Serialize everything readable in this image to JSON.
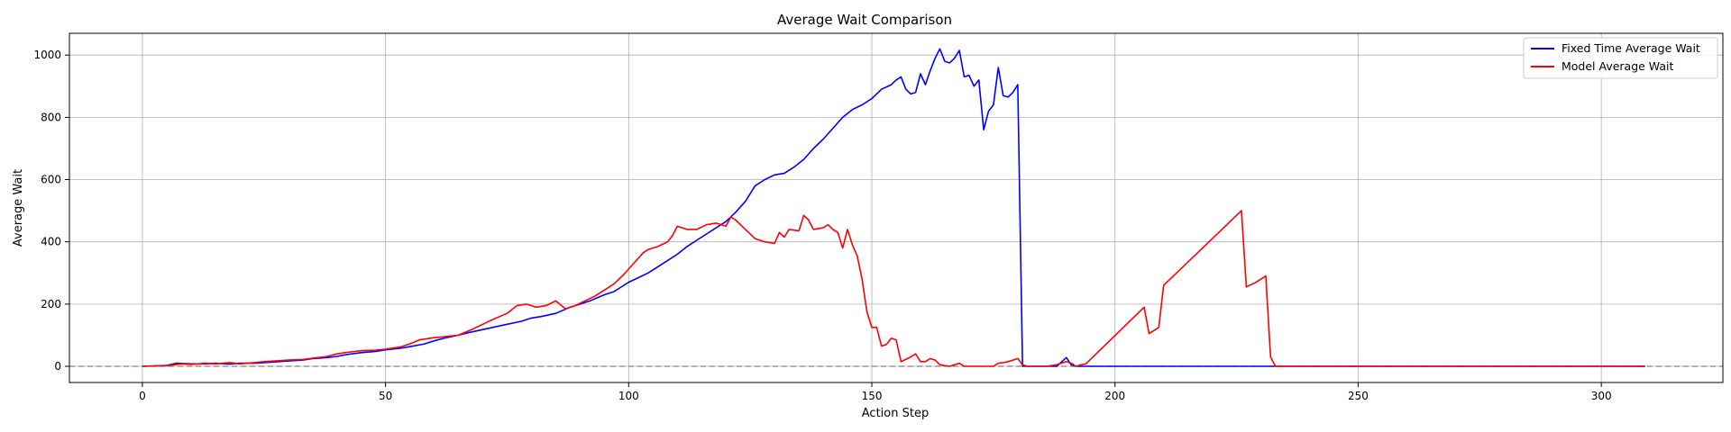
{
  "chart_data": {
    "type": "line",
    "title": "Average Wait Comparison",
    "xlabel": "Action Step",
    "ylabel": "Average Wait",
    "xlim": [
      -15,
      325
    ],
    "ylim": [
      -52,
      1070
    ],
    "xticks": [
      0,
      50,
      100,
      150,
      200,
      250,
      300
    ],
    "yticks": [
      0,
      200,
      400,
      600,
      800,
      1000
    ],
    "grid": true,
    "legend": "top-right",
    "reference_line": {
      "y": 0,
      "style": "dashed",
      "color": "#808080"
    },
    "series": [
      {
        "name": "Fixed Time Average Wait",
        "color": "#0000ff",
        "points": [
          [
            0,
            0
          ],
          [
            5,
            3
          ],
          [
            7,
            10
          ],
          [
            10,
            8
          ],
          [
            13,
            8
          ],
          [
            15,
            10
          ],
          [
            18,
            7
          ],
          [
            20,
            10
          ],
          [
            23,
            10
          ],
          [
            25,
            12
          ],
          [
            28,
            15
          ],
          [
            30,
            17
          ],
          [
            33,
            20
          ],
          [
            35,
            25
          ],
          [
            38,
            28
          ],
          [
            40,
            32
          ],
          [
            42,
            38
          ],
          [
            45,
            44
          ],
          [
            48,
            48
          ],
          [
            50,
            53
          ],
          [
            53,
            58
          ],
          [
            55,
            63
          ],
          [
            58,
            72
          ],
          [
            60,
            82
          ],
          [
            62,
            90
          ],
          [
            65,
            100
          ],
          [
            67,
            108
          ],
          [
            70,
            118
          ],
          [
            72,
            125
          ],
          [
            75,
            135
          ],
          [
            78,
            145
          ],
          [
            80,
            155
          ],
          [
            82,
            160
          ],
          [
            85,
            170
          ],
          [
            88,
            190
          ],
          [
            90,
            200
          ],
          [
            92,
            210
          ],
          [
            95,
            230
          ],
          [
            97,
            240
          ],
          [
            100,
            270
          ],
          [
            102,
            285
          ],
          [
            104,
            300
          ],
          [
            106,
            320
          ],
          [
            108,
            340
          ],
          [
            110,
            360
          ],
          [
            112,
            385
          ],
          [
            114,
            405
          ],
          [
            116,
            425
          ],
          [
            118,
            445
          ],
          [
            120,
            465
          ],
          [
            122,
            495
          ],
          [
            124,
            530
          ],
          [
            126,
            580
          ],
          [
            128,
            600
          ],
          [
            130,
            615
          ],
          [
            132,
            620
          ],
          [
            134,
            640
          ],
          [
            136,
            665
          ],
          [
            138,
            700
          ],
          [
            140,
            730
          ],
          [
            142,
            765
          ],
          [
            144,
            800
          ],
          [
            146,
            825
          ],
          [
            148,
            840
          ],
          [
            150,
            860
          ],
          [
            152,
            890
          ],
          [
            154,
            905
          ],
          [
            155,
            920
          ],
          [
            156,
            930
          ],
          [
            157,
            890
          ],
          [
            158,
            875
          ],
          [
            159,
            880
          ],
          [
            160,
            940
          ],
          [
            161,
            905
          ],
          [
            162,
            950
          ],
          [
            163,
            990
          ],
          [
            164,
            1020
          ],
          [
            165,
            980
          ],
          [
            166,
            975
          ],
          [
            167,
            990
          ],
          [
            168,
            1015
          ],
          [
            169,
            930
          ],
          [
            170,
            935
          ],
          [
            171,
            900
          ],
          [
            172,
            920
          ],
          [
            173,
            760
          ],
          [
            174,
            820
          ],
          [
            175,
            840
          ],
          [
            176,
            960
          ],
          [
            177,
            870
          ],
          [
            178,
            865
          ],
          [
            179,
            880
          ],
          [
            180,
            905
          ],
          [
            181,
            0
          ],
          [
            183,
            0
          ],
          [
            188,
            0
          ],
          [
            190,
            28
          ],
          [
            191,
            5
          ],
          [
            192,
            0
          ],
          [
            200,
            0
          ],
          [
            250,
            0
          ],
          [
            309,
            0
          ]
        ]
      },
      {
        "name": "Model Average Wait",
        "color": "#ff0000",
        "points": [
          [
            0,
            0
          ],
          [
            5,
            2
          ],
          [
            8,
            8
          ],
          [
            10,
            6
          ],
          [
            13,
            10
          ],
          [
            15,
            8
          ],
          [
            18,
            12
          ],
          [
            20,
            8
          ],
          [
            23,
            12
          ],
          [
            25,
            15
          ],
          [
            28,
            18
          ],
          [
            30,
            20
          ],
          [
            33,
            22
          ],
          [
            35,
            26
          ],
          [
            38,
            32
          ],
          [
            40,
            40
          ],
          [
            42,
            45
          ],
          [
            45,
            50
          ],
          [
            48,
            52
          ],
          [
            50,
            55
          ],
          [
            53,
            62
          ],
          [
            55,
            72
          ],
          [
            57,
            85
          ],
          [
            60,
            92
          ],
          [
            62,
            95
          ],
          [
            65,
            100
          ],
          [
            68,
            120
          ],
          [
            70,
            135
          ],
          [
            72,
            150
          ],
          [
            75,
            170
          ],
          [
            77,
            195
          ],
          [
            79,
            200
          ],
          [
            81,
            190
          ],
          [
            83,
            195
          ],
          [
            85,
            210
          ],
          [
            87,
            185
          ],
          [
            89,
            195
          ],
          [
            91,
            210
          ],
          [
            93,
            225
          ],
          [
            95,
            245
          ],
          [
            97,
            265
          ],
          [
            99,
            295
          ],
          [
            101,
            330
          ],
          [
            103,
            365
          ],
          [
            104,
            375
          ],
          [
            106,
            385
          ],
          [
            108,
            400
          ],
          [
            109,
            420
          ],
          [
            110,
            450
          ],
          [
            112,
            440
          ],
          [
            114,
            440
          ],
          [
            116,
            455
          ],
          [
            118,
            460
          ],
          [
            120,
            450
          ],
          [
            121,
            480
          ],
          [
            122,
            470
          ],
          [
            124,
            440
          ],
          [
            126,
            410
          ],
          [
            128,
            400
          ],
          [
            130,
            395
          ],
          [
            131,
            430
          ],
          [
            132,
            415
          ],
          [
            133,
            440
          ],
          [
            135,
            435
          ],
          [
            136,
            485
          ],
          [
            137,
            470
          ],
          [
            138,
            440
          ],
          [
            140,
            445
          ],
          [
            141,
            455
          ],
          [
            142,
            440
          ],
          [
            143,
            430
          ],
          [
            144,
            380
          ],
          [
            145,
            440
          ],
          [
            146,
            390
          ],
          [
            147,
            355
          ],
          [
            148,
            280
          ],
          [
            149,
            175
          ],
          [
            150,
            125
          ],
          [
            151,
            125
          ],
          [
            152,
            65
          ],
          [
            153,
            70
          ],
          [
            154,
            90
          ],
          [
            155,
            85
          ],
          [
            156,
            15
          ],
          [
            158,
            30
          ],
          [
            159,
            40
          ],
          [
            160,
            15
          ],
          [
            161,
            15
          ],
          [
            162,
            25
          ],
          [
            163,
            20
          ],
          [
            164,
            5
          ],
          [
            166,
            0
          ],
          [
            167,
            5
          ],
          [
            168,
            10
          ],
          [
            169,
            0
          ],
          [
            175,
            0
          ],
          [
            176,
            10
          ],
          [
            177,
            12
          ],
          [
            178,
            15
          ],
          [
            179,
            20
          ],
          [
            180,
            25
          ],
          [
            181,
            5
          ],
          [
            182,
            0
          ],
          [
            186,
            0
          ],
          [
            188,
            5
          ],
          [
            190,
            15
          ],
          [
            191,
            10
          ],
          [
            192,
            0
          ],
          [
            193,
            5
          ],
          [
            194,
            8
          ],
          [
            206,
            190
          ],
          [
            207,
            105
          ],
          [
            209,
            125
          ],
          [
            210,
            260
          ],
          [
            226,
            500
          ],
          [
            227,
            255
          ],
          [
            229,
            270
          ],
          [
            231,
            290
          ],
          [
            232,
            30
          ],
          [
            233,
            0
          ],
          [
            309,
            0
          ]
        ]
      }
    ]
  }
}
